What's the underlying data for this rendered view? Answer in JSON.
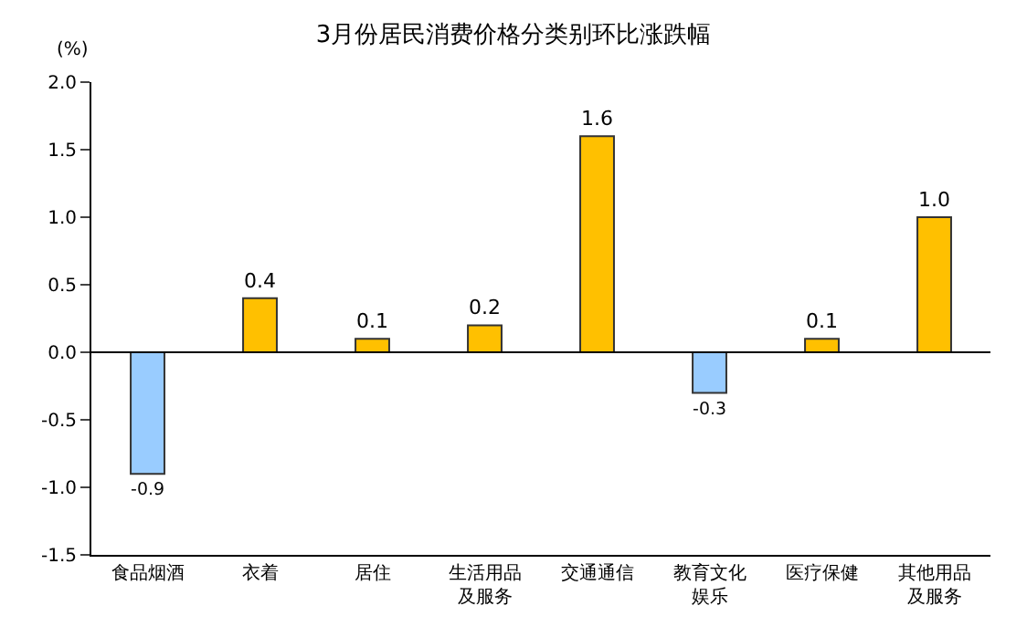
{
  "chart_data": {
    "type": "bar",
    "title": "3月份居民消费价格分类别环比涨跌幅",
    "ylabel": "(%)",
    "categories": [
      "食品烟酒",
      "衣着",
      "居住",
      "生活用品及服务",
      "交通通信",
      "教育文化娱乐",
      "医疗保健",
      "其他用品及服务"
    ],
    "values": [
      -0.9,
      0.4,
      0.1,
      0.2,
      1.6,
      -0.3,
      0.1,
      1.0
    ],
    "colors": [
      "#99ccff",
      "#ffc000",
      "#ffc000",
      "#ffc000",
      "#ffc000",
      "#99ccff",
      "#ffc000",
      "#ffc000"
    ],
    "value_labels": [
      "-0.9",
      "0.4",
      "0.1",
      "0.2",
      "1.6",
      "-0.3",
      "0.1",
      "1.0"
    ],
    "ylim": [
      -1.5,
      2.0
    ],
    "yticks": [
      {
        "value": -1.5,
        "label": "-1.5"
      },
      {
        "value": -1.0,
        "label": "-1.0"
      },
      {
        "value": -0.5,
        "label": "-0.5"
      },
      {
        "value": 0,
        "label": "0.0"
      },
      {
        "value": 0.5,
        "label": "0.5"
      },
      {
        "value": 1.0,
        "label": "1.0"
      },
      {
        "value": 1.5,
        "label": "1.5"
      },
      {
        "value": 2.0,
        "label": "2.0"
      }
    ],
    "ref_lines": [
      {
        "axis": "y",
        "value": 0,
        "color": "#000000"
      }
    ],
    "grid": false
  }
}
